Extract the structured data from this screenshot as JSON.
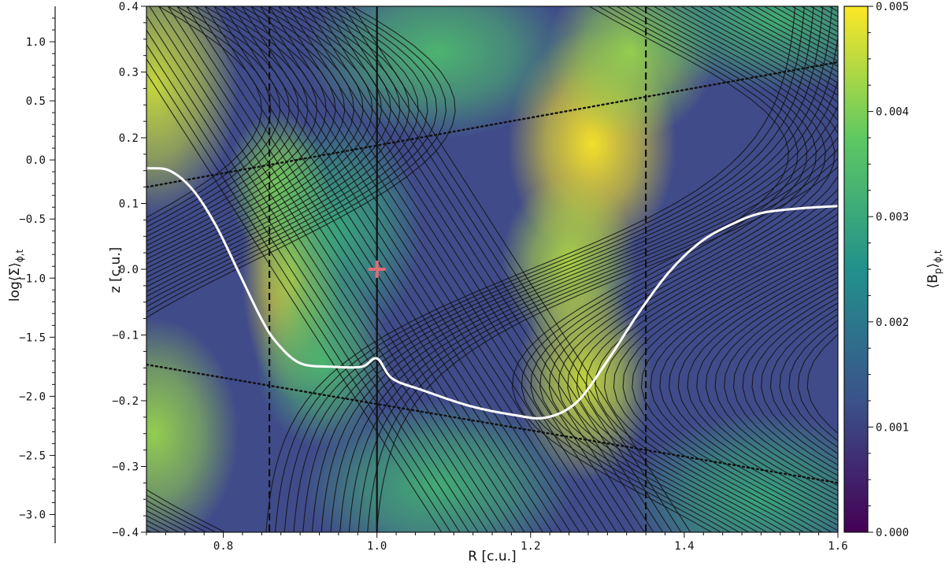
{
  "chart_data": {
    "type": "heatmap",
    "xlabel": "R [c.u.]",
    "ylabel": "z [c.u.]",
    "leftlabel": "log⟨Σ⟩",
    "leftlabel_sub": "ϕ,t",
    "colorbar_label": "⟨B",
    "colorbar_label_sub1": "p",
    "colorbar_label_sub2": "ϕ,t",
    "xlim": [
      0.7,
      1.6
    ],
    "ylim": [
      -0.4,
      0.4
    ],
    "left_axis_lim": [
      -3.15,
      1.3
    ],
    "colorbar_lim": [
      0.0,
      0.005
    ],
    "x_ticks": [
      0.8,
      1.0,
      1.2,
      1.4,
      1.6
    ],
    "x_tick_labels": [
      "0.8",
      "1.0",
      "1.2",
      "1.4",
      "1.6"
    ],
    "y_ticks": [
      -0.4,
      -0.3,
      -0.2,
      -0.1,
      0.0,
      0.1,
      0.2,
      0.3,
      0.4
    ],
    "y_tick_labels": [
      "−0.4",
      "−0.3",
      "−0.2",
      "−0.1",
      "0.0",
      "0.1",
      "0.2",
      "0.3",
      "0.4"
    ],
    "left_ticks": [
      1.0,
      0.5,
      0.0,
      -0.5,
      -1.0,
      -1.5,
      -2.0,
      -2.5,
      -3.0
    ],
    "left_tick_labels": [
      "1.0",
      "0.5",
      "0.0",
      "−0.5",
      "−1.0",
      "−1.5",
      "−2.0",
      "−2.5",
      "−3.0"
    ],
    "colorbar_ticks": [
      0.0,
      0.001,
      0.002,
      0.003,
      0.004,
      0.005
    ],
    "colorbar_tick_labels": [
      "0.000",
      "0.001",
      "0.002",
      "0.003",
      "0.004",
      "0.005"
    ],
    "colormap": [
      "#440154",
      "#3b528b",
      "#21918c",
      "#5ec962",
      "#fde725"
    ],
    "vertical_lines": [
      {
        "x": 0.86,
        "style": "dashed"
      },
      {
        "x": 1.0,
        "style": "solid"
      },
      {
        "x": 1.35,
        "style": "dashed"
      }
    ],
    "dotted_lines": [
      {
        "x": [
          0.7,
          1.6
        ],
        "y": [
          0.125,
          0.315
        ]
      },
      {
        "x": [
          0.7,
          1.6
        ],
        "y": [
          -0.145,
          -0.325
        ]
      }
    ],
    "marker": {
      "x": 1.0,
      "y": 0.0,
      "symbol": "+",
      "color": "#e06c75"
    },
    "profile_left_axis": {
      "color": "#ffffff",
      "x": [
        0.7,
        0.73,
        0.76,
        0.79,
        0.82,
        0.85,
        0.87,
        0.9,
        0.94,
        0.98,
        1.0,
        1.02,
        1.06,
        1.12,
        1.18,
        1.22,
        1.26,
        1.3,
        1.34,
        1.38,
        1.42,
        1.46,
        1.5,
        1.55,
        1.6
      ],
      "y": [
        -0.07,
        -0.09,
        -0.25,
        -0.55,
        -0.95,
        -1.35,
        -1.55,
        -1.72,
        -1.75,
        -1.75,
        -1.68,
        -1.85,
        -1.95,
        -2.08,
        -2.16,
        -2.18,
        -2.05,
        -1.7,
        -1.3,
        -0.95,
        -0.7,
        -0.55,
        -0.45,
        -0.41,
        -0.39
      ]
    },
    "field_blobs": [
      {
        "x": 0.71,
        "y": 0.28,
        "v": 0.0046,
        "sx": 0.05,
        "sy": 0.09
      },
      {
        "x": 0.71,
        "y": -0.25,
        "v": 0.0042,
        "sx": 0.05,
        "sy": 0.08
      },
      {
        "x": 0.89,
        "y": 0.0,
        "v": 0.0048,
        "sx": 0.03,
        "sy": 0.09
      },
      {
        "x": 0.87,
        "y": 0.13,
        "v": 0.004,
        "sx": 0.03,
        "sy": 0.05
      },
      {
        "x": 0.95,
        "y": 0.06,
        "v": 0.003,
        "sx": 0.05,
        "sy": 0.08
      },
      {
        "x": 0.93,
        "y": -0.14,
        "v": 0.0034,
        "sx": 0.04,
        "sy": 0.06
      },
      {
        "x": 1.28,
        "y": 0.19,
        "v": 0.005,
        "sx": 0.05,
        "sy": 0.08
      },
      {
        "x": 1.25,
        "y": 0.01,
        "v": 0.0044,
        "sx": 0.04,
        "sy": 0.06
      },
      {
        "x": 1.27,
        "y": -0.17,
        "v": 0.0046,
        "sx": 0.04,
        "sy": 0.07
      },
      {
        "x": 1.33,
        "y": 0.33,
        "v": 0.0042,
        "sx": 0.05,
        "sy": 0.06
      },
      {
        "x": 1.52,
        "y": 0.38,
        "v": 0.0032,
        "sx": 0.09,
        "sy": 0.05
      },
      {
        "x": 1.08,
        "y": 0.33,
        "v": 0.0034,
        "sx": 0.08,
        "sy": 0.06
      },
      {
        "x": 1.08,
        "y": -0.33,
        "v": 0.0032,
        "sx": 0.08,
        "sy": 0.06
      },
      {
        "x": 1.5,
        "y": -0.35,
        "v": 0.003,
        "sx": 0.08,
        "sy": 0.06
      }
    ]
  }
}
